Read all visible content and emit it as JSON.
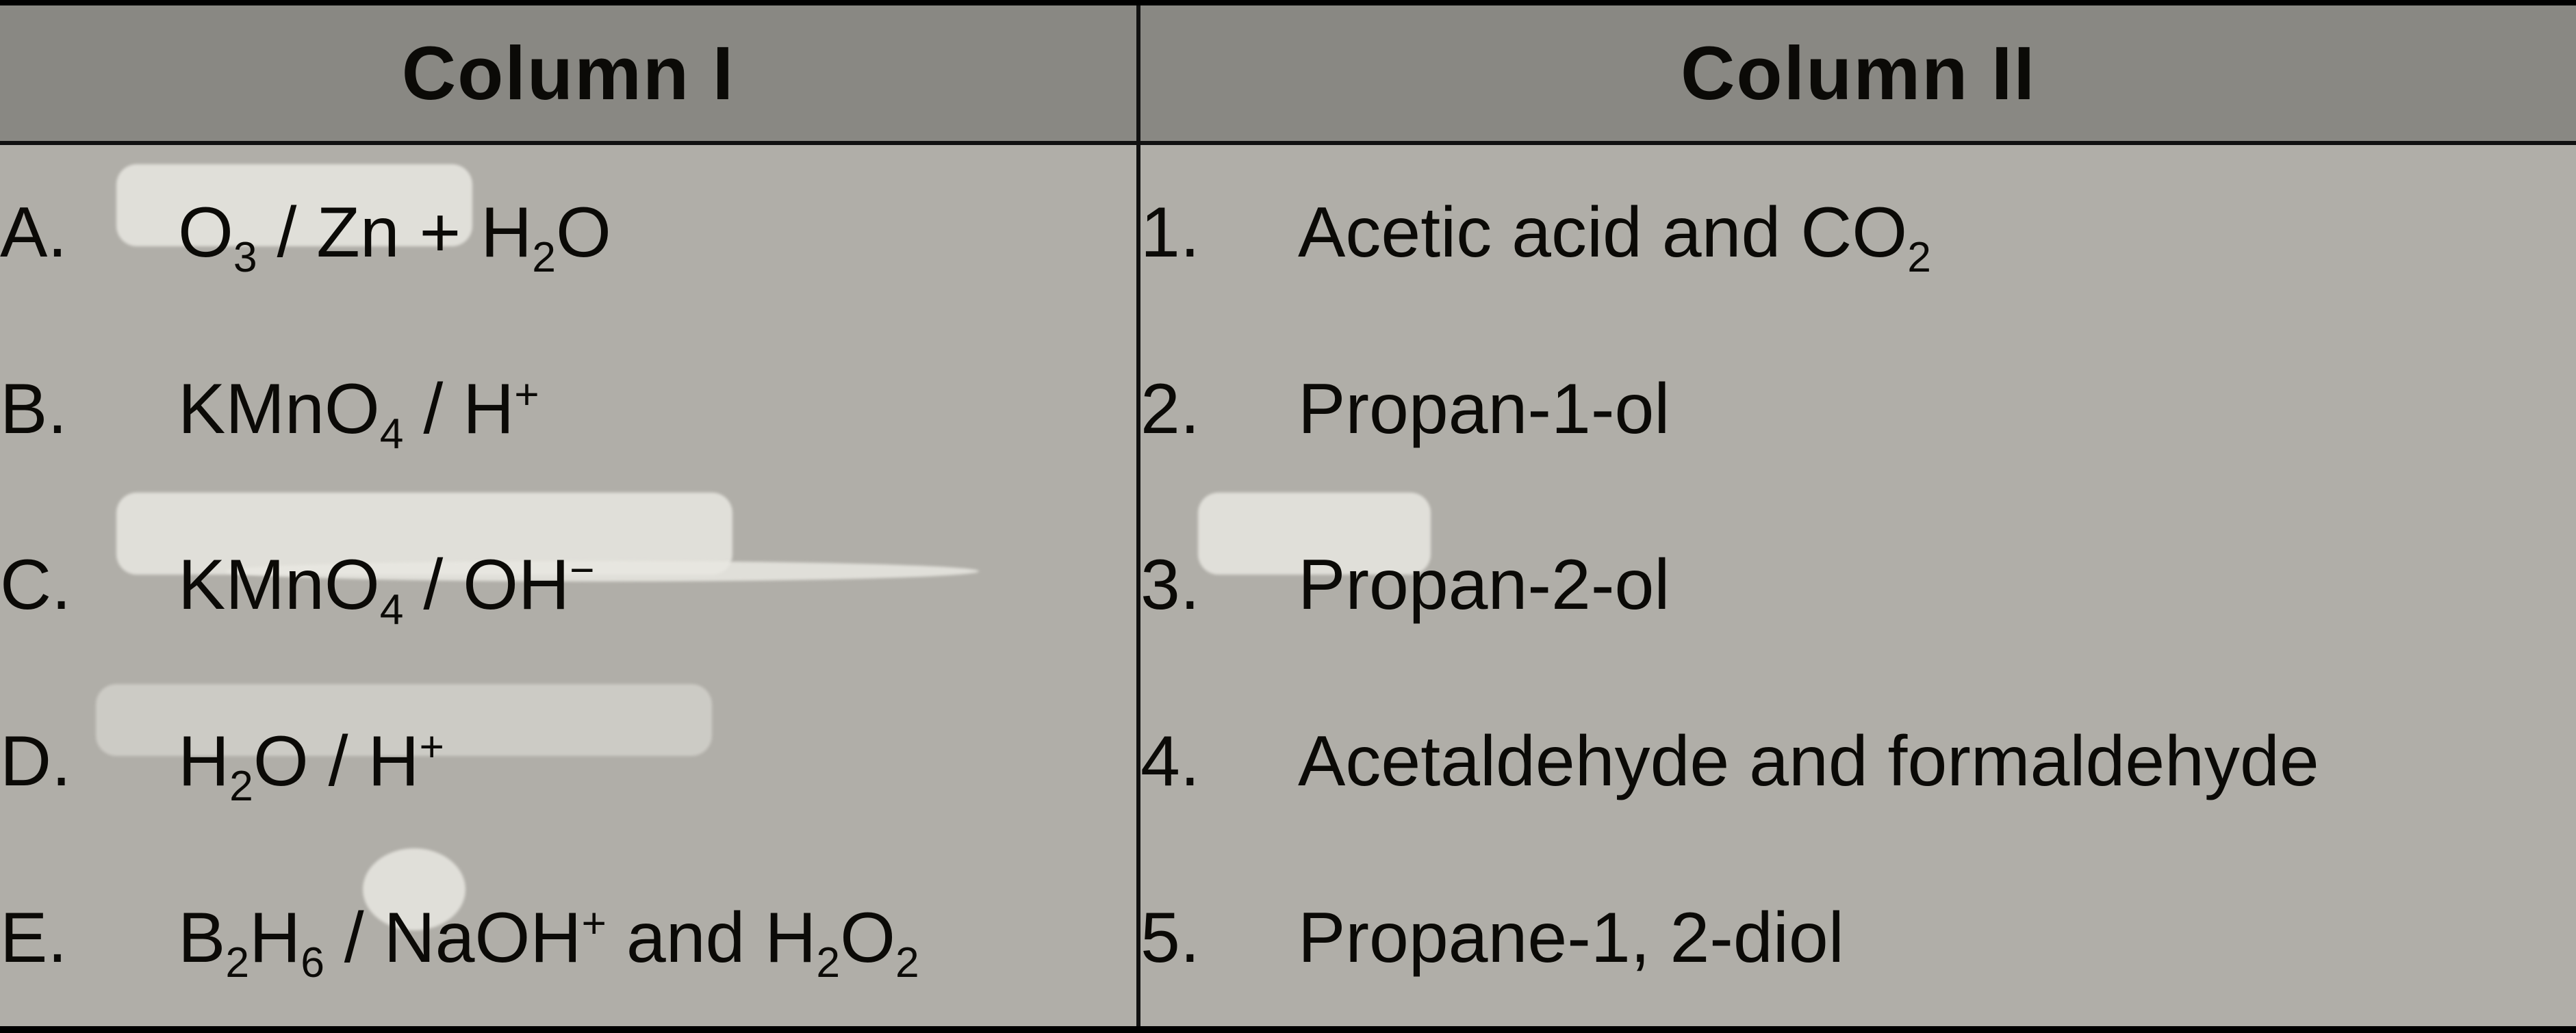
{
  "structure_type": "table",
  "background_color": "#b0aea8",
  "header_background": "#898883",
  "rule_color": "#000000",
  "text_color": "#0b0a07",
  "font_family": "Segoe UI / Arial",
  "header_fontsize_pt": 55,
  "body_fontsize_pt": 52,
  "columns": {
    "left_header": "Column I",
    "right_header": "Column II"
  },
  "rows": [
    {
      "left_label": "A.",
      "reagent_html": "O<sub>3</sub> / Zn + H<sub>2</sub>O",
      "right_num": "1.",
      "product_html": "Acetic acid and CO<sub>2</sub>"
    },
    {
      "left_label": "B.",
      "reagent_html": "KMnO<sub>4</sub> / H<sup>+</sup>",
      "right_num": "2.",
      "product_html": "Propan-1-ol"
    },
    {
      "left_label": "C.",
      "reagent_html": "KMnO<sub>4</sub> / OH<sup>&#8722;</sup>",
      "right_num": "3.",
      "product_html": "Propan-2-ol"
    },
    {
      "left_label": "D.",
      "reagent_html": "H<sub>2</sub>O / H<sup>+</sup>",
      "right_num": "4.",
      "product_html": "Acetaldehyde and formaldehyde"
    },
    {
      "left_label": "E.",
      "reagent_html": "B<sub>2</sub>H<sub>6</sub> / NaOH<sup>+</sup> and H<sub>2</sub>O<sub>2</sub>",
      "right_num": "5.",
      "product_html": "Propane-1, 2-diol"
    }
  ]
}
